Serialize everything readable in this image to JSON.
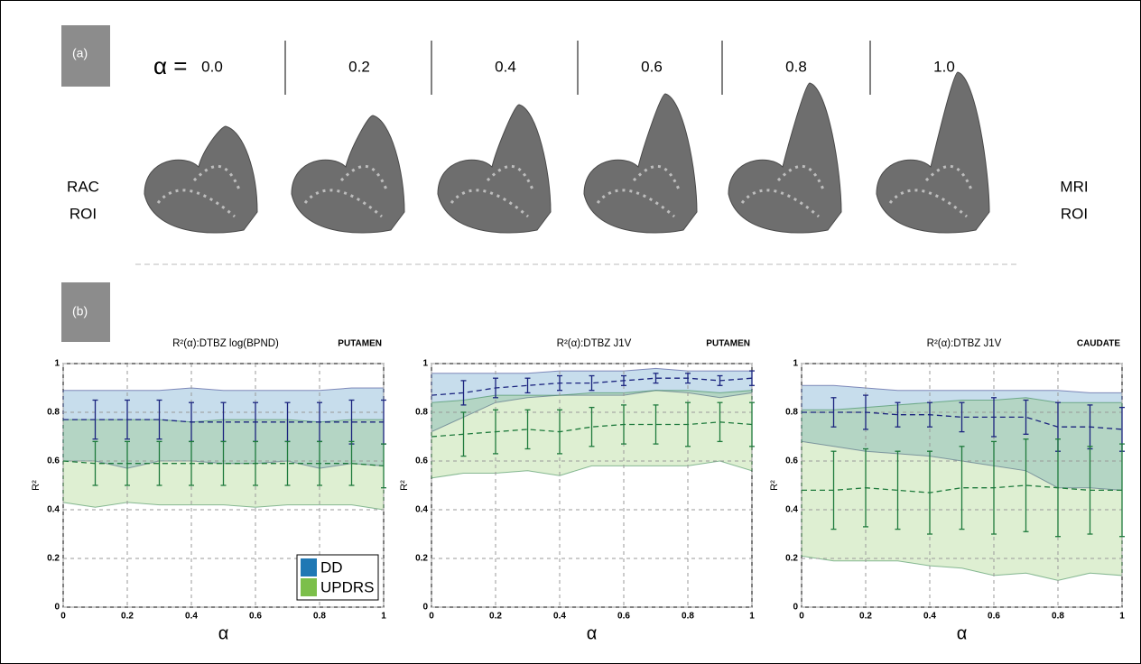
{
  "panel_a": {
    "label": "(a)",
    "alpha_prefix": "α =",
    "alpha_values": [
      "0.0",
      "0.2",
      "0.4",
      "0.6",
      "0.8",
      "1.0"
    ],
    "left_label": [
      "RAC",
      "ROI"
    ],
    "right_label": [
      "MRI",
      "ROI"
    ]
  },
  "panel_b": {
    "label": "(b)"
  },
  "chart_data": [
    {
      "type": "band-line",
      "title": "R²(α):DTBZ log(BPND)",
      "region": "PUTAMEN",
      "xlabel": "α",
      "ylabel": "R²",
      "x": [
        0,
        0.1,
        0.2,
        0.3,
        0.4,
        0.5,
        0.6,
        0.7,
        0.8,
        0.9,
        1
      ],
      "xlim": [
        0,
        1
      ],
      "xticks": [
        0,
        0.2,
        0.4,
        0.6,
        0.8,
        1
      ],
      "ylim": [
        0,
        1
      ],
      "yticks": [
        0,
        0.2,
        0.4,
        0.6,
        0.8,
        1
      ],
      "grid": true,
      "legend": "lower right",
      "series": [
        {
          "name": "DD",
          "color": "#1f78b4",
          "line_color": "#1a237e",
          "values": [
            0.77,
            0.77,
            0.77,
            0.77,
            0.76,
            0.76,
            0.76,
            0.76,
            0.76,
            0.76,
            0.76
          ],
          "upper": [
            0.89,
            0.89,
            0.89,
            0.89,
            0.9,
            0.89,
            0.89,
            0.89,
            0.89,
            0.9,
            0.9
          ],
          "lower": [
            0.6,
            0.6,
            0.57,
            0.6,
            0.6,
            0.59,
            0.59,
            0.6,
            0.57,
            0.59,
            0.58
          ],
          "errors": [
            null,
            0.08,
            0.08,
            0.08,
            0.08,
            0.08,
            0.08,
            0.08,
            0.08,
            0.09,
            0.09
          ]
        },
        {
          "name": "UPDRS",
          "color": "#7cbf4a",
          "line_color": "#1e7a3c",
          "values": [
            0.6,
            0.59,
            0.59,
            0.59,
            0.59,
            0.59,
            0.59,
            0.59,
            0.59,
            0.59,
            0.58
          ],
          "upper": [
            0.77,
            0.77,
            0.77,
            0.77,
            0.76,
            0.77,
            0.77,
            0.77,
            0.76,
            0.77,
            0.77
          ],
          "lower": [
            0.43,
            0.41,
            0.43,
            0.42,
            0.42,
            0.42,
            0.41,
            0.42,
            0.42,
            0.42,
            0.4
          ],
          "errors": [
            null,
            0.09,
            0.09,
            0.09,
            0.09,
            0.09,
            0.09,
            0.09,
            0.09,
            0.09,
            0.09
          ]
        }
      ]
    },
    {
      "type": "band-line",
      "title": "R²(α):DTBZ J1V",
      "region": "PUTAMEN",
      "xlabel": "α",
      "ylabel": "R²",
      "x": [
        0,
        0.1,
        0.2,
        0.3,
        0.4,
        0.5,
        0.6,
        0.7,
        0.8,
        0.9,
        1
      ],
      "xlim": [
        0,
        1
      ],
      "xticks": [
        0,
        0.2,
        0.4,
        0.6,
        0.8,
        1
      ],
      "ylim": [
        0,
        1
      ],
      "yticks": [
        0,
        0.2,
        0.4,
        0.6,
        0.8,
        1
      ],
      "grid": true,
      "series": [
        {
          "color": "#1f78b4",
          "line_color": "#1a237e",
          "values": [
            0.87,
            0.88,
            0.9,
            0.91,
            0.92,
            0.92,
            0.93,
            0.94,
            0.94,
            0.93,
            0.94
          ],
          "upper": [
            0.96,
            0.96,
            0.96,
            0.96,
            0.97,
            0.97,
            0.97,
            0.98,
            0.97,
            0.97,
            0.97
          ],
          "lower": [
            0.72,
            0.78,
            0.84,
            0.86,
            0.87,
            0.87,
            0.87,
            0.89,
            0.88,
            0.86,
            0.88
          ],
          "errors": [
            null,
            0.05,
            0.04,
            0.03,
            0.03,
            0.03,
            0.02,
            0.02,
            0.02,
            0.02,
            0.03
          ]
        },
        {
          "color": "#7cbf4a",
          "line_color": "#1e7a3c",
          "values": [
            0.7,
            0.71,
            0.72,
            0.73,
            0.72,
            0.74,
            0.75,
            0.75,
            0.75,
            0.76,
            0.75
          ],
          "upper": [
            0.84,
            0.85,
            0.87,
            0.87,
            0.87,
            0.88,
            0.88,
            0.89,
            0.89,
            0.88,
            0.89
          ],
          "lower": [
            0.53,
            0.55,
            0.55,
            0.56,
            0.54,
            0.58,
            0.58,
            0.58,
            0.58,
            0.6,
            0.56
          ],
          "errors": [
            null,
            0.09,
            0.09,
            0.08,
            0.09,
            0.08,
            0.08,
            0.08,
            0.09,
            0.08,
            0.09
          ]
        }
      ]
    },
    {
      "type": "band-line",
      "title": "R²(α):DTBZ J1V",
      "region": "CAUDATE",
      "xlabel": "α",
      "ylabel": "R²",
      "x": [
        0,
        0.1,
        0.2,
        0.3,
        0.4,
        0.5,
        0.6,
        0.7,
        0.8,
        0.9,
        1
      ],
      "xlim": [
        0,
        1
      ],
      "xticks": [
        0,
        0.2,
        0.4,
        0.6,
        0.8,
        1
      ],
      "ylim": [
        0,
        1
      ],
      "yticks": [
        0,
        0.2,
        0.4,
        0.6,
        0.8,
        1
      ],
      "grid": true,
      "series": [
        {
          "color": "#1f78b4",
          "line_color": "#1a237e",
          "values": [
            0.8,
            0.8,
            0.8,
            0.79,
            0.79,
            0.78,
            0.78,
            0.78,
            0.74,
            0.74,
            0.73
          ],
          "upper": [
            0.91,
            0.91,
            0.9,
            0.89,
            0.89,
            0.89,
            0.89,
            0.89,
            0.89,
            0.88,
            0.88
          ],
          "lower": [
            0.68,
            0.66,
            0.64,
            0.63,
            0.62,
            0.6,
            0.58,
            0.56,
            0.49,
            0.49,
            0.48
          ],
          "errors": [
            null,
            0.06,
            0.07,
            0.05,
            0.05,
            0.06,
            0.08,
            0.07,
            0.1,
            0.09,
            0.09
          ]
        },
        {
          "color": "#7cbf4a",
          "line_color": "#1e7a3c",
          "values": [
            0.48,
            0.48,
            0.49,
            0.48,
            0.47,
            0.49,
            0.49,
            0.5,
            0.49,
            0.48,
            0.48
          ],
          "upper": [
            0.81,
            0.81,
            0.82,
            0.83,
            0.84,
            0.85,
            0.85,
            0.86,
            0.84,
            0.84,
            0.84
          ],
          "lower": [
            0.21,
            0.19,
            0.19,
            0.19,
            0.17,
            0.16,
            0.13,
            0.14,
            0.11,
            0.14,
            0.13
          ],
          "errors": [
            null,
            0.16,
            0.16,
            0.16,
            0.17,
            0.17,
            0.19,
            0.19,
            0.2,
            0.18,
            0.19
          ]
        }
      ]
    }
  ]
}
